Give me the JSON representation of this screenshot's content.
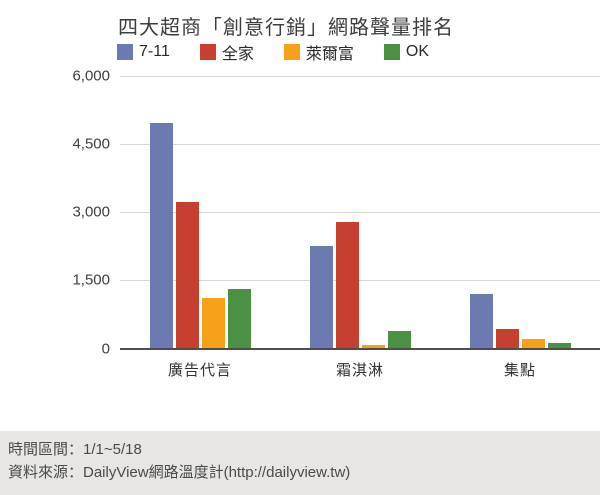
{
  "title": "四大超商「創意行銷」網路聲量排名",
  "footer": {
    "line1": "時間區間：1/1~5/18",
    "line2": "資料來源：DailyView網路溫度計(http://dailyview.tw)"
  },
  "colors": {
    "series": [
      "#6b7ab0",
      "#c5402e",
      "#f6a118",
      "#4b9145"
    ],
    "gridline": "#d6d6d6",
    "baseline": "#4d4d4d",
    "title_text": "#3d3d3d",
    "footer_bg": "#e7e6e5"
  },
  "chart_data": {
    "type": "bar",
    "title": "四大超商「創意行銷」網路聲量排名",
    "categories": [
      "廣告代言",
      "霜淇淋",
      "集點"
    ],
    "series": [
      {
        "name": "7-11",
        "color": "#6b7ab0",
        "values": [
          4970,
          2250,
          1200
        ]
      },
      {
        "name": "全家",
        "color": "#c5402e",
        "values": [
          3230,
          2780,
          420
        ]
      },
      {
        "name": "萊爾富",
        "color": "#f6a118",
        "values": [
          1100,
          70,
          200
        ]
      },
      {
        "name": "OK",
        "color": "#4b9145",
        "values": [
          1300,
          380,
          100
        ]
      }
    ],
    "xlabel": "",
    "ylabel": "",
    "ylim": [
      0,
      6000
    ],
    "yticks": [
      {
        "value": 6000,
        "label": "6,000"
      },
      {
        "value": 4500,
        "label": "4,500"
      },
      {
        "value": 3000,
        "label": "3,000"
      },
      {
        "value": 1500,
        "label": "1,500"
      },
      {
        "value": 0,
        "label": "0"
      }
    ],
    "grid": true,
    "legend_position": "top-left"
  }
}
